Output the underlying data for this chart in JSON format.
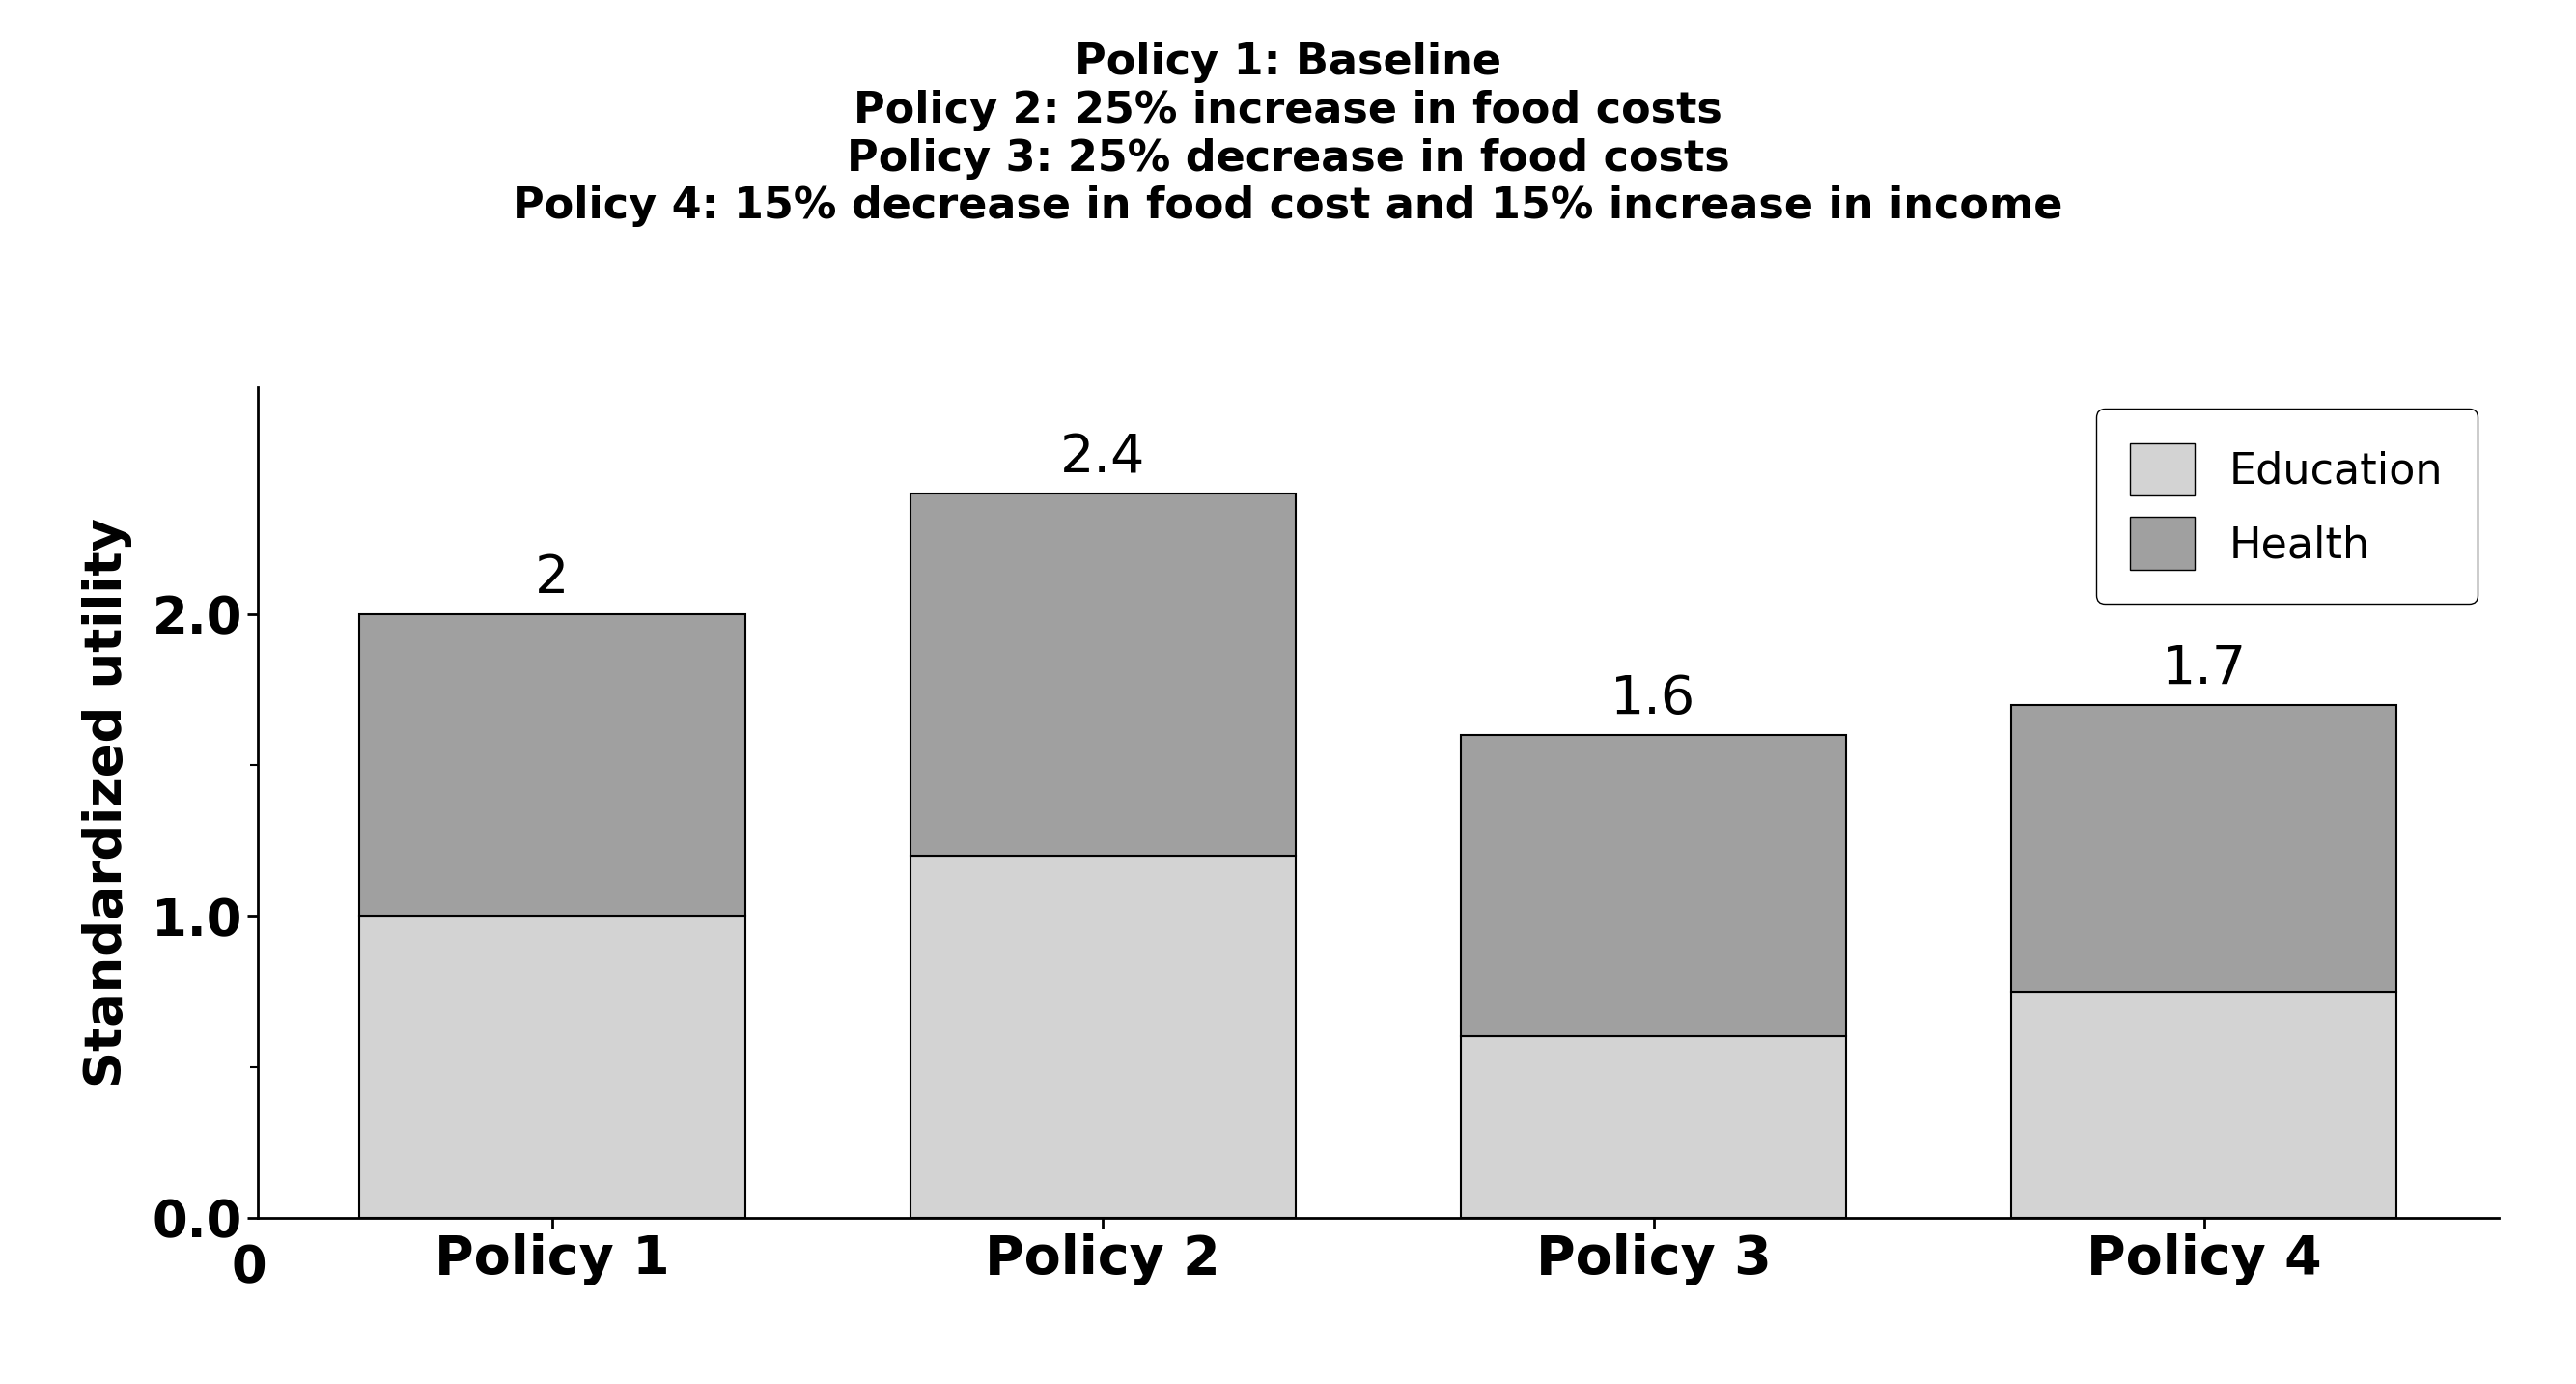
{
  "categories": [
    "Policy 1",
    "Policy 2",
    "Policy 3",
    "Policy 4"
  ],
  "education_values": [
    1.0,
    1.2,
    0.6,
    0.75
  ],
  "health_values": [
    1.0,
    1.2,
    1.0,
    0.95
  ],
  "totals": [
    2,
    2.4,
    1.6,
    1.7
  ],
  "total_labels": [
    "2",
    "2.4",
    "1.6",
    "1.7"
  ],
  "education_color": "#d3d3d3",
  "health_color": "#a0a0a0",
  "bar_edge_color": "#000000",
  "bar_width": 0.7,
  "ylim": [
    0,
    2.75
  ],
  "yticks_labeled": [
    0.0,
    1.0,
    2.0
  ],
  "yticks_minor": [
    0.5,
    1.5
  ],
  "ytick_labels": [
    "0.0",
    "1.0",
    "2.0"
  ],
  "ylabel": "Standardized utility",
  "title_lines": [
    "Policy 1: Baseline",
    "Policy 2: 25% increase in food costs",
    "Policy 3: 25% decrease in food costs",
    "Policy 4: 15% decrease in food cost and 15% increase in income"
  ],
  "legend_labels": [
    "Education",
    "Health"
  ],
  "legend_colors": [
    "#d3d3d3",
    "#a0a0a0"
  ],
  "title_fontsize": 32,
  "axis_label_fontsize": 38,
  "tick_fontsize": 38,
  "bar_label_fontsize": 40,
  "legend_fontsize": 32,
  "xtick_fontsize": 40,
  "background_color": "#ffffff"
}
